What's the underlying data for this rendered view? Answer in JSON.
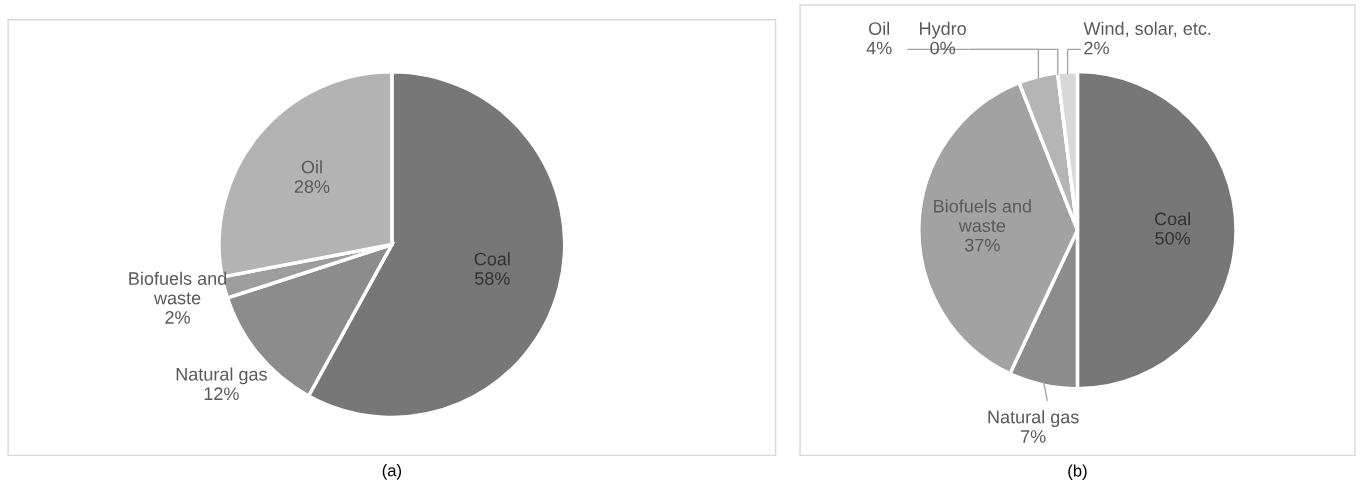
{
  "chart_data": [
    {
      "type": "pie",
      "categories": [
        "Coal",
        "Natural gas",
        "Biofuels and waste",
        "Oil"
      ],
      "values": [
        58,
        12,
        2,
        28
      ],
      "value_labels": [
        "58%",
        "12%",
        "2%",
        "28%"
      ],
      "colors": [
        "#777777",
        "#8c8c8c",
        "#9d9d9d",
        "#b3b3b3"
      ],
      "annotations": [
        "(a)"
      ]
    },
    {
      "type": "pie",
      "categories": [
        "Coal",
        "Natural gas",
        "Biofuels and waste",
        "Oil",
        "Hydro",
        "Wind, solar, etc."
      ],
      "values": [
        50,
        7,
        37,
        4,
        0,
        2
      ],
      "value_labels": [
        "50%",
        "7%",
        "37%",
        "4%",
        "0%",
        "2%"
      ],
      "colors": [
        "#777777",
        "#8c8c8c",
        "#a2a2a2",
        "#b5b5b5",
        "#c8c8c8",
        "#d8d8d8"
      ],
      "annotations": [
        "(b)"
      ]
    }
  ]
}
